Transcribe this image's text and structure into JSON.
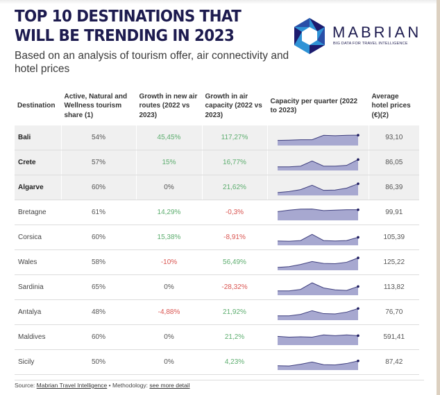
{
  "header": {
    "title": "TOP 10 DESTINATIONS THAT WILL BE TRENDING IN 2023",
    "subtitle": "Based on an analysis of tourism offer, air connectivity and hotel prices"
  },
  "logo": {
    "brand": "MABRIAN",
    "tagline": "BIG DATA FOR TRAVEL INTELLIGENCE",
    "colors": {
      "light": "#2f93d6",
      "dark": "#1d1b6e",
      "mid": "#2a4fa8"
    }
  },
  "table": {
    "columns": [
      "Destination",
      "Active, Natural and Wellness tourism share (1)",
      "Growth in new air routes (2022 vs 2023)",
      "Growth in air capacity (2022 vs 2023)",
      "Capacity per quarter (2022 to 2023)",
      "Average hotel prices (€)(2)"
    ],
    "rows": [
      {
        "destination": "Bali",
        "share": "54%",
        "routes": "45,45%",
        "routes_trend": "pos",
        "capacity": "117,27%",
        "capacity_trend": "pos",
        "quarters": [
          3,
          3.2,
          3.5,
          3.5,
          6.5,
          6.2,
          6.5,
          6.6
        ],
        "price": "93,10",
        "highlight": true
      },
      {
        "destination": "Crete",
        "share": "57%",
        "routes": "15%",
        "routes_trend": "pos",
        "capacity": "16,77%",
        "capacity_trend": "pos",
        "quarters": [
          2,
          2,
          2.5,
          6,
          2.5,
          2.5,
          3,
          7
        ],
        "price": "86,05",
        "highlight": true
      },
      {
        "destination": "Algarve",
        "share": "60%",
        "routes": "0%",
        "routes_trend": "neu",
        "capacity": "21,62%",
        "capacity_trend": "pos",
        "quarters": [
          1.5,
          2.2,
          3.5,
          6.5,
          3,
          3.2,
          4.5,
          7.5
        ],
        "price": "86,39",
        "highlight": true
      },
      {
        "destination": "Bretagne",
        "share": "61%",
        "routes": "14,29%",
        "routes_trend": "pos",
        "capacity": "-0,3%",
        "capacity_trend": "neg",
        "quarters": [
          5.5,
          6.5,
          7.2,
          7.3,
          6.2,
          6.5,
          6.8,
          6.8
        ],
        "price": "99,91",
        "highlight": false
      },
      {
        "destination": "Corsica",
        "share": "60%",
        "routes": "15,38%",
        "routes_trend": "pos",
        "capacity": "-8,91%",
        "capacity_trend": "neg",
        "quarters": [
          2.5,
          2.3,
          2.8,
          7,
          2.8,
          2.5,
          2.8,
          5
        ],
        "price": "105,39",
        "highlight": false
      },
      {
        "destination": "Wales",
        "share": "58%",
        "routes": "-10%",
        "routes_trend": "neg",
        "capacity": "56,49%",
        "capacity_trend": "pos",
        "quarters": [
          1.5,
          2,
          3.5,
          5.5,
          4.2,
          4,
          5,
          8
        ],
        "price": "125,22",
        "highlight": false
      },
      {
        "destination": "Sardinia",
        "share": "65%",
        "routes": "0%",
        "routes_trend": "neu",
        "capacity": "-28,32%",
        "capacity_trend": "neg",
        "quarters": [
          2.5,
          2.5,
          3.5,
          8,
          4.5,
          3.2,
          2.8,
          5.5
        ],
        "price": "113,82",
        "highlight": false
      },
      {
        "destination": "Antalya",
        "share": "48%",
        "routes": "-4,88%",
        "routes_trend": "neg",
        "capacity": "21,92%",
        "capacity_trend": "pos",
        "quarters": [
          2.5,
          2.5,
          3.5,
          6,
          4,
          3.8,
          5,
          7.5
        ],
        "price": "76,70",
        "highlight": false
      },
      {
        "destination": "Maldives",
        "share": "60%",
        "routes": "0%",
        "routes_trend": "neu",
        "capacity": "21,2%",
        "capacity_trend": "pos",
        "quarters": [
          5.5,
          5,
          5.2,
          5,
          6.5,
          6,
          6.5,
          6
        ],
        "price": "591,41",
        "highlight": false
      },
      {
        "destination": "Sicily",
        "share": "50%",
        "routes": "0%",
        "routes_trend": "neu",
        "capacity": "4,23%",
        "capacity_trend": "pos",
        "quarters": [
          2.5,
          2.3,
          3.5,
          5,
          3.2,
          3,
          4,
          5.8
        ],
        "price": "87,42",
        "highlight": false
      }
    ],
    "spark_colors": {
      "fill": "#a7a8d0",
      "line": "#3f3f7e",
      "dot": "#1d1b5e"
    }
  },
  "footer": {
    "source_label": "Source:",
    "source_link": "Mabrian Travel Intelligence",
    "separator": "•",
    "methodology_label": "Methodology:",
    "methodology_link": "see more detail"
  }
}
